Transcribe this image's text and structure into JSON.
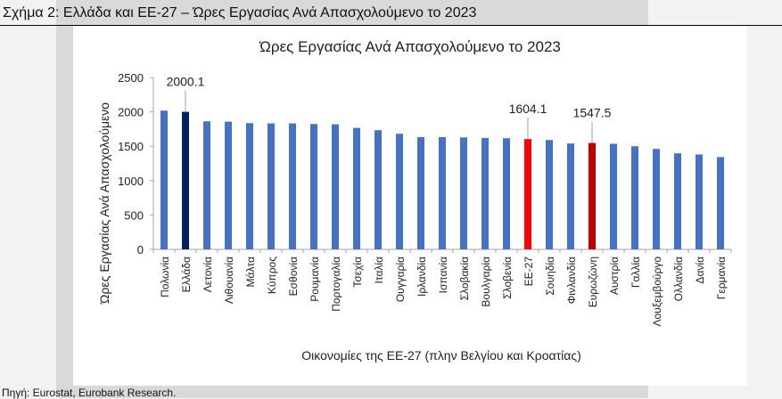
{
  "figure_title": "Σχήμα 2: Ελλάδα και ΕΕ-27 – Ώρες Εργασίας Ανά Απασχολούμενο το 2023",
  "source": "Πηγή: Eurostat, Eurobank Research.",
  "chart_data": {
    "type": "bar",
    "title": "Ώρες Εργασίας Ανά Απασχολούμενο το 2023",
    "xlabel": "Οικονομίες της ΕΕ-27 (πλην Βελγίου και Κροατίας)",
    "ylabel": "Ώρες Εργασίας Ανά Απασχολούμενο",
    "ylim": [
      0,
      2500
    ],
    "yticks": [
      0,
      500,
      1000,
      1500,
      2000,
      2500
    ],
    "grid": false,
    "categories": [
      "Πολωνία",
      "Ελλάδα",
      "Λετονία",
      "Λιθουανία",
      "Μάλτα",
      "Κύπρος",
      "Εσθονία",
      "Ρουμανία",
      "Πορτογαλία",
      "Τσεχία",
      "Ιταλία",
      "Ουγγαρία",
      "Ιρλανδία",
      "Ισπανία",
      "Σλοβακία",
      "Βουλγαρία",
      "Σλοβενία",
      "ΕΕ-27",
      "Σουηδία",
      "Φινλανδία",
      "Ευρωζώνη",
      "Αυστρία",
      "Γαλλία",
      "Λουξεμβούργο",
      "Ολλανδία",
      "Δανία",
      "Γερμανία"
    ],
    "values": [
      2017,
      2000.1,
      1862,
      1858,
      1836,
      1832,
      1832,
      1823,
      1819,
      1767,
      1733,
      1681,
      1633,
      1633,
      1628,
      1620,
      1616,
      1604.1,
      1590,
      1540,
      1547.5,
      1535,
      1500,
      1461,
      1397,
      1380,
      1343
    ],
    "data_labels": {
      "Ελλάδα": "2000.1",
      "ΕΕ-27": "1604.1",
      "Ευρωζώνη": "1547.5"
    },
    "colors": {
      "default": "#4472c4",
      "Ελλάδα": "#002060",
      "ΕΕ-27": "#ff0000",
      "Ευρωζώνη": "#c00000"
    }
  }
}
